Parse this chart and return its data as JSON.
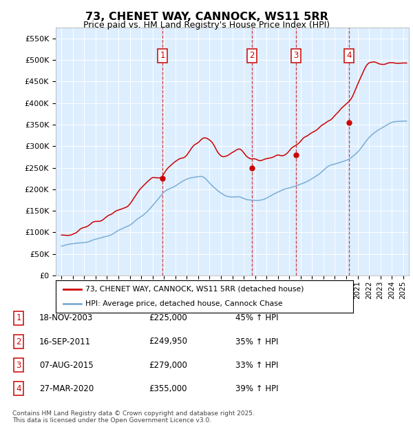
{
  "title": "73, CHENET WAY, CANNOCK, WS11 5RR",
  "subtitle": "Price paid vs. HM Land Registry's House Price Index (HPI)",
  "legend_property": "73, CHENET WAY, CANNOCK, WS11 5RR (detached house)",
  "legend_hpi": "HPI: Average price, detached house, Cannock Chase",
  "footnote1": "Contains HM Land Registry data © Crown copyright and database right 2025.",
  "footnote2": "This data is licensed under the Open Government Licence v3.0.",
  "transactions": [
    {
      "num": 1,
      "date": "18-NOV-2003",
      "date_x": 2003.88,
      "price": 225000,
      "label": "45% ↑ HPI"
    },
    {
      "num": 2,
      "date": "16-SEP-2011",
      "date_x": 2011.71,
      "price": 249950,
      "label": "35% ↑ HPI"
    },
    {
      "num": 3,
      "date": "07-AUG-2015",
      "date_x": 2015.6,
      "price": 279000,
      "label": "33% ↑ HPI"
    },
    {
      "num": 4,
      "date": "27-MAR-2020",
      "date_x": 2020.24,
      "price": 355000,
      "label": "39% ↑ HPI"
    }
  ],
  "ylim": [
    0,
    575000
  ],
  "xlim_start": 1994.5,
  "xlim_end": 2025.5,
  "property_color": "#cc0000",
  "hpi_color": "#7aadd4",
  "background_color": "#ddeeff",
  "plot_bg": "#ddeeff"
}
